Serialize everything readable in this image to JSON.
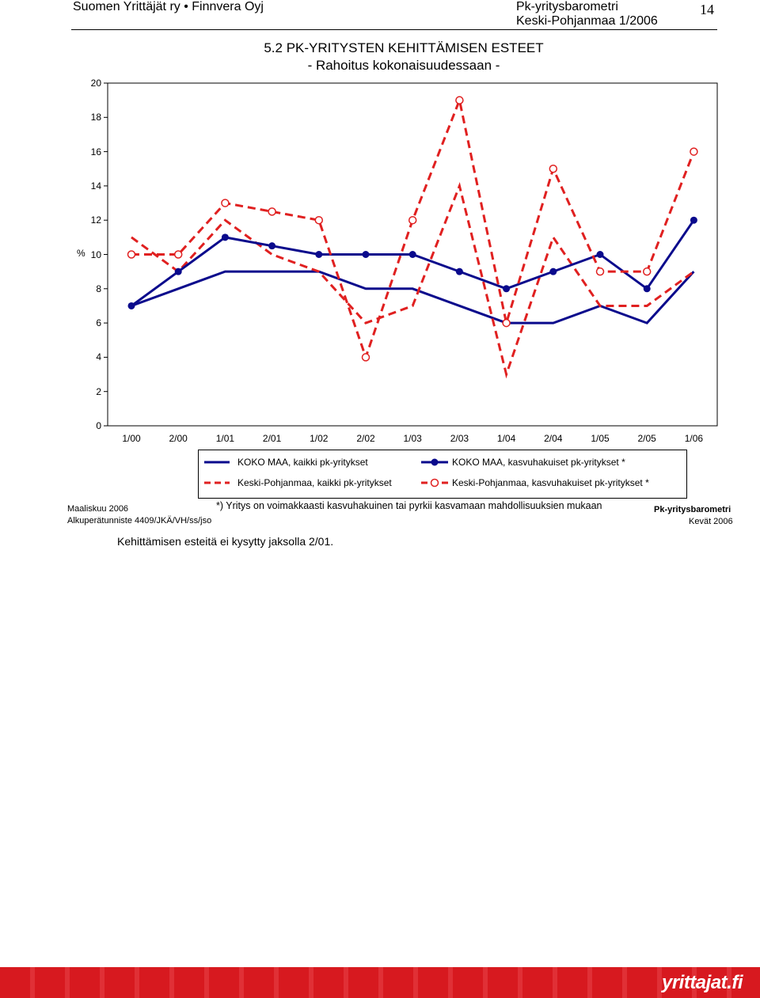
{
  "header": {
    "left": "Suomen Yrittäjät ry • Finnvera Oyj",
    "right_line1": "Pk-yritysbarometri",
    "right_line2": "Keski-Pohjanmaa 1/2006",
    "page_number": "14"
  },
  "chart_data": {
    "type": "line",
    "title": "5.2 PK-YRITYSTEN KEHITTÄMISEN ESTEET",
    "subtitle": "- Rahoitus kokonaisuudessaan -",
    "ylabel": "%",
    "ylim": [
      0,
      20
    ],
    "yticks": [
      "0",
      "2",
      "4",
      "6",
      "8",
      "10",
      "12",
      "14",
      "16",
      "18",
      "20"
    ],
    "categories": [
      "1/00",
      "2/00",
      "1/01",
      "2/01",
      "1/02",
      "2/02",
      "1/03",
      "2/03",
      "1/04",
      "2/04",
      "1/05",
      "2/05",
      "1/06"
    ],
    "series": [
      {
        "name": "KOKO MAA, kaikki pk-yritykset",
        "color": "#0a0a8c",
        "style": "solid",
        "marker": "none",
        "values": [
          7,
          8,
          9,
          9,
          9,
          8,
          8,
          7,
          6,
          6,
          7,
          6,
          9
        ]
      },
      {
        "name": "KOKO MAA, kasvuhakuiset pk-yritykset *",
        "color": "#0a0a8c",
        "style": "solid",
        "marker": "filled-circle",
        "values": [
          7,
          9,
          11,
          10.5,
          10,
          10,
          10,
          9,
          8,
          9,
          10,
          8,
          12
        ]
      },
      {
        "name": "Keski-Pohjanmaa, kaikki pk-yritykset",
        "color": "#e02020",
        "style": "dashed",
        "marker": "none",
        "values": [
          11,
          9,
          12,
          10,
          9,
          6,
          7,
          14,
          3,
          11,
          7,
          7,
          9
        ]
      },
      {
        "name": "Keski-Pohjanmaa, kasvuhakuiset pk-yritykset *",
        "color": "#e02020",
        "style": "dashed",
        "marker": "open-circle",
        "values": [
          10,
          10,
          13,
          12.5,
          12,
          4,
          12,
          19,
          6,
          15,
          9,
          9,
          16
        ]
      }
    ],
    "legend_position": "bottom",
    "grid": false
  },
  "footnote": "*) Yritys on voimakkaasti kasvuhakuinen tai pyrkii kasvamaan mahdollisuuksien mukaan",
  "meta": {
    "date": "Maaliskuu 2006",
    "source_code": "Alkuperätunniste 4409/JKÄ/VH/ss/jso",
    "brand_right": "Pk-yritysbarometri",
    "season": "Kevät 2006"
  },
  "note": "Kehittämisen esteitä ei kysytty jaksolla 2/01.",
  "footer": {
    "brand": "yrittajat.fi",
    "band_color": "#d7191f"
  }
}
